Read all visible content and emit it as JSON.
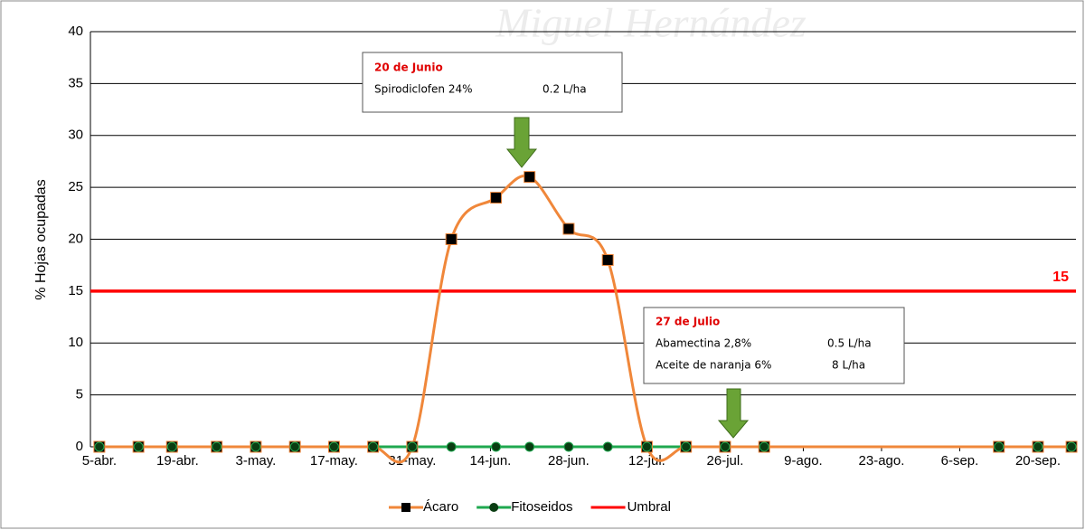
{
  "chart_data": {
    "type": "line",
    "watermark": "Miguel Hernández",
    "y_label": "% Hojas ocupadas",
    "x": [
      0,
      7,
      13,
      21,
      28,
      35,
      42,
      49,
      56,
      63,
      71,
      77,
      84,
      91,
      98,
      105,
      112,
      119,
      161,
      168,
      174
    ],
    "xlim": [
      -1.6,
      174.8
    ],
    "xticks": [
      {
        "value": 0,
        "label": "5-abr."
      },
      {
        "value": 14,
        "label": "19-abr."
      },
      {
        "value": 28,
        "label": "3-may."
      },
      {
        "value": 42,
        "label": "17-may."
      },
      {
        "value": 56,
        "label": "31-may."
      },
      {
        "value": 70,
        "label": "14-jun."
      },
      {
        "value": 84,
        "label": "28-jun."
      },
      {
        "value": 98,
        "label": "12-jul."
      },
      {
        "value": 112,
        "label": "26-jul."
      },
      {
        "value": 126,
        "label": "9-ago."
      },
      {
        "value": 140,
        "label": "23-ago."
      },
      {
        "value": 154,
        "label": "6-sep."
      },
      {
        "value": 168,
        "label": "20-sep."
      }
    ],
    "ylim": [
      0,
      40
    ],
    "yticks": [
      0,
      5,
      10,
      15,
      20,
      25,
      30,
      35,
      40
    ],
    "grid": true,
    "series": [
      {
        "name": "Ácaro",
        "color": "#f0873a",
        "marker": "square",
        "smooth": true,
        "values": [
          0,
          0,
          0,
          0,
          0,
          0,
          0,
          0,
          0,
          20,
          24,
          26,
          21,
          18,
          0,
          0,
          0,
          0,
          0,
          0,
          0
        ]
      },
      {
        "name": "Fitoseidos",
        "color": "#1fa84f",
        "marker": "circle",
        "smooth": false,
        "values": [
          0,
          0,
          0,
          0,
          0,
          0,
          0,
          0,
          0,
          0,
          0,
          0,
          0,
          0,
          0,
          0,
          0,
          0,
          0,
          0,
          0
        ]
      }
    ],
    "threshold": {
      "name": "Umbral",
      "value": 15,
      "color": "#ff0000"
    },
    "annotations": [
      {
        "title": "20 de Junio",
        "rows": [
          [
            "Spirodiclofen 24%",
            "0.2 L/ha"
          ]
        ]
      },
      {
        "title": "27 de Julio",
        "rows": [
          [
            "Abamectina 2,8%",
            "0.5 L/ha"
          ],
          [
            "Aceite de naranja 6%",
            "8 L/ha"
          ]
        ]
      }
    ]
  }
}
